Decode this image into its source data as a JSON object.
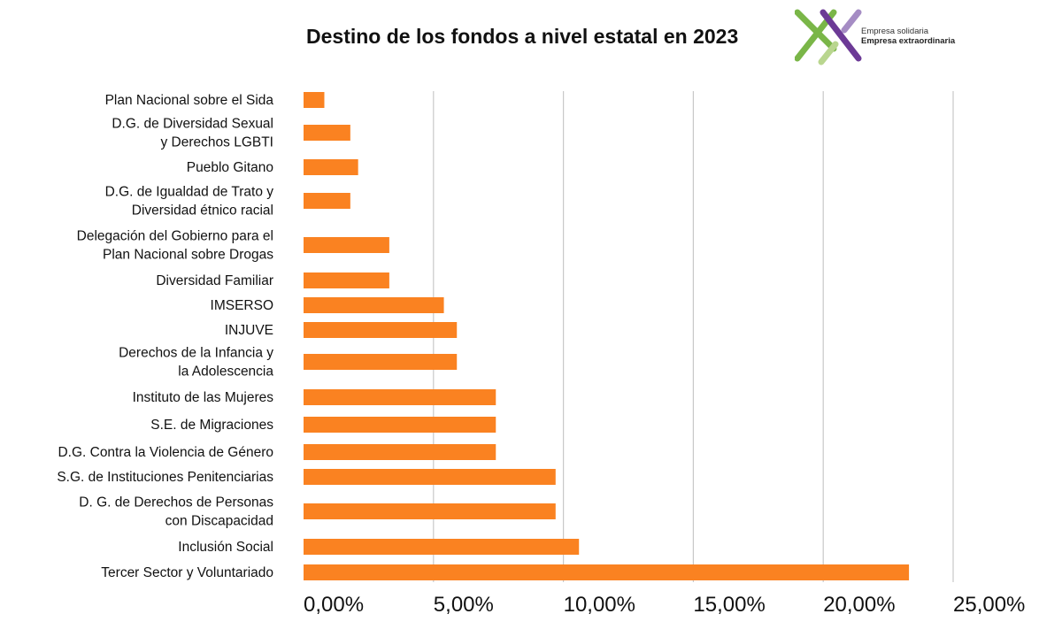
{
  "header": {
    "title": "Destino de los fondos a nivel estatal en 2023"
  },
  "logo": {
    "line1": "Empresa solidaria",
    "line2": "Empresa extraordinaria",
    "colors": {
      "green": "#7ab648",
      "purple": "#6c3a96",
      "light_purple": "#a58cc4",
      "light_green": "#b9d68f"
    }
  },
  "chart_data": {
    "type": "bar",
    "orientation": "horizontal",
    "title": "Destino de los fondos a nivel estatal en 2023",
    "categories": [
      [
        "Plan Nacional sobre el Sida"
      ],
      [
        "D.G. de Diversidad Sexual",
        "y Derechos LGBTI"
      ],
      [
        "Pueblo Gitano"
      ],
      [
        "D.G. de Igualdad de Trato y",
        "Diversidad étnico racial"
      ],
      [
        "Delegación del Gobierno para el",
        "Plan Nacional sobre Drogas"
      ],
      [
        "Diversidad Familiar"
      ],
      [
        "IMSERSO"
      ],
      [
        "INJUVE"
      ],
      [
        "Derechos de la Infancia y",
        "la Adolescencia"
      ],
      [
        "Instituto de las Mujeres"
      ],
      [
        "S.E. de Migraciones"
      ],
      [
        "D.G. Contra la Violencia de Género"
      ],
      [
        "S.G. de Instituciones Penitenciarias"
      ],
      [
        "D. G. de Derechos de Personas",
        "con Discapacidad"
      ],
      [
        "Inclusión Social"
      ],
      [
        "Tercer Sector y Voluntariado"
      ]
    ],
    "values": [
      0.8,
      1.8,
      2.1,
      1.8,
      3.3,
      3.3,
      5.4,
      5.9,
      5.9,
      7.4,
      7.4,
      7.4,
      9.7,
      9.7,
      10.6,
      23.3
    ],
    "xlim": [
      0,
      25
    ],
    "xticks": [
      0,
      5,
      10,
      15,
      20,
      25
    ],
    "xtick_labels": [
      "0,00%",
      "5,00%",
      "10,00%",
      "15,00%",
      "20,00%",
      "25,00%"
    ],
    "grid": "vertical",
    "bar_color": "#fa8221",
    "grid_color": "#c8c8c8"
  }
}
